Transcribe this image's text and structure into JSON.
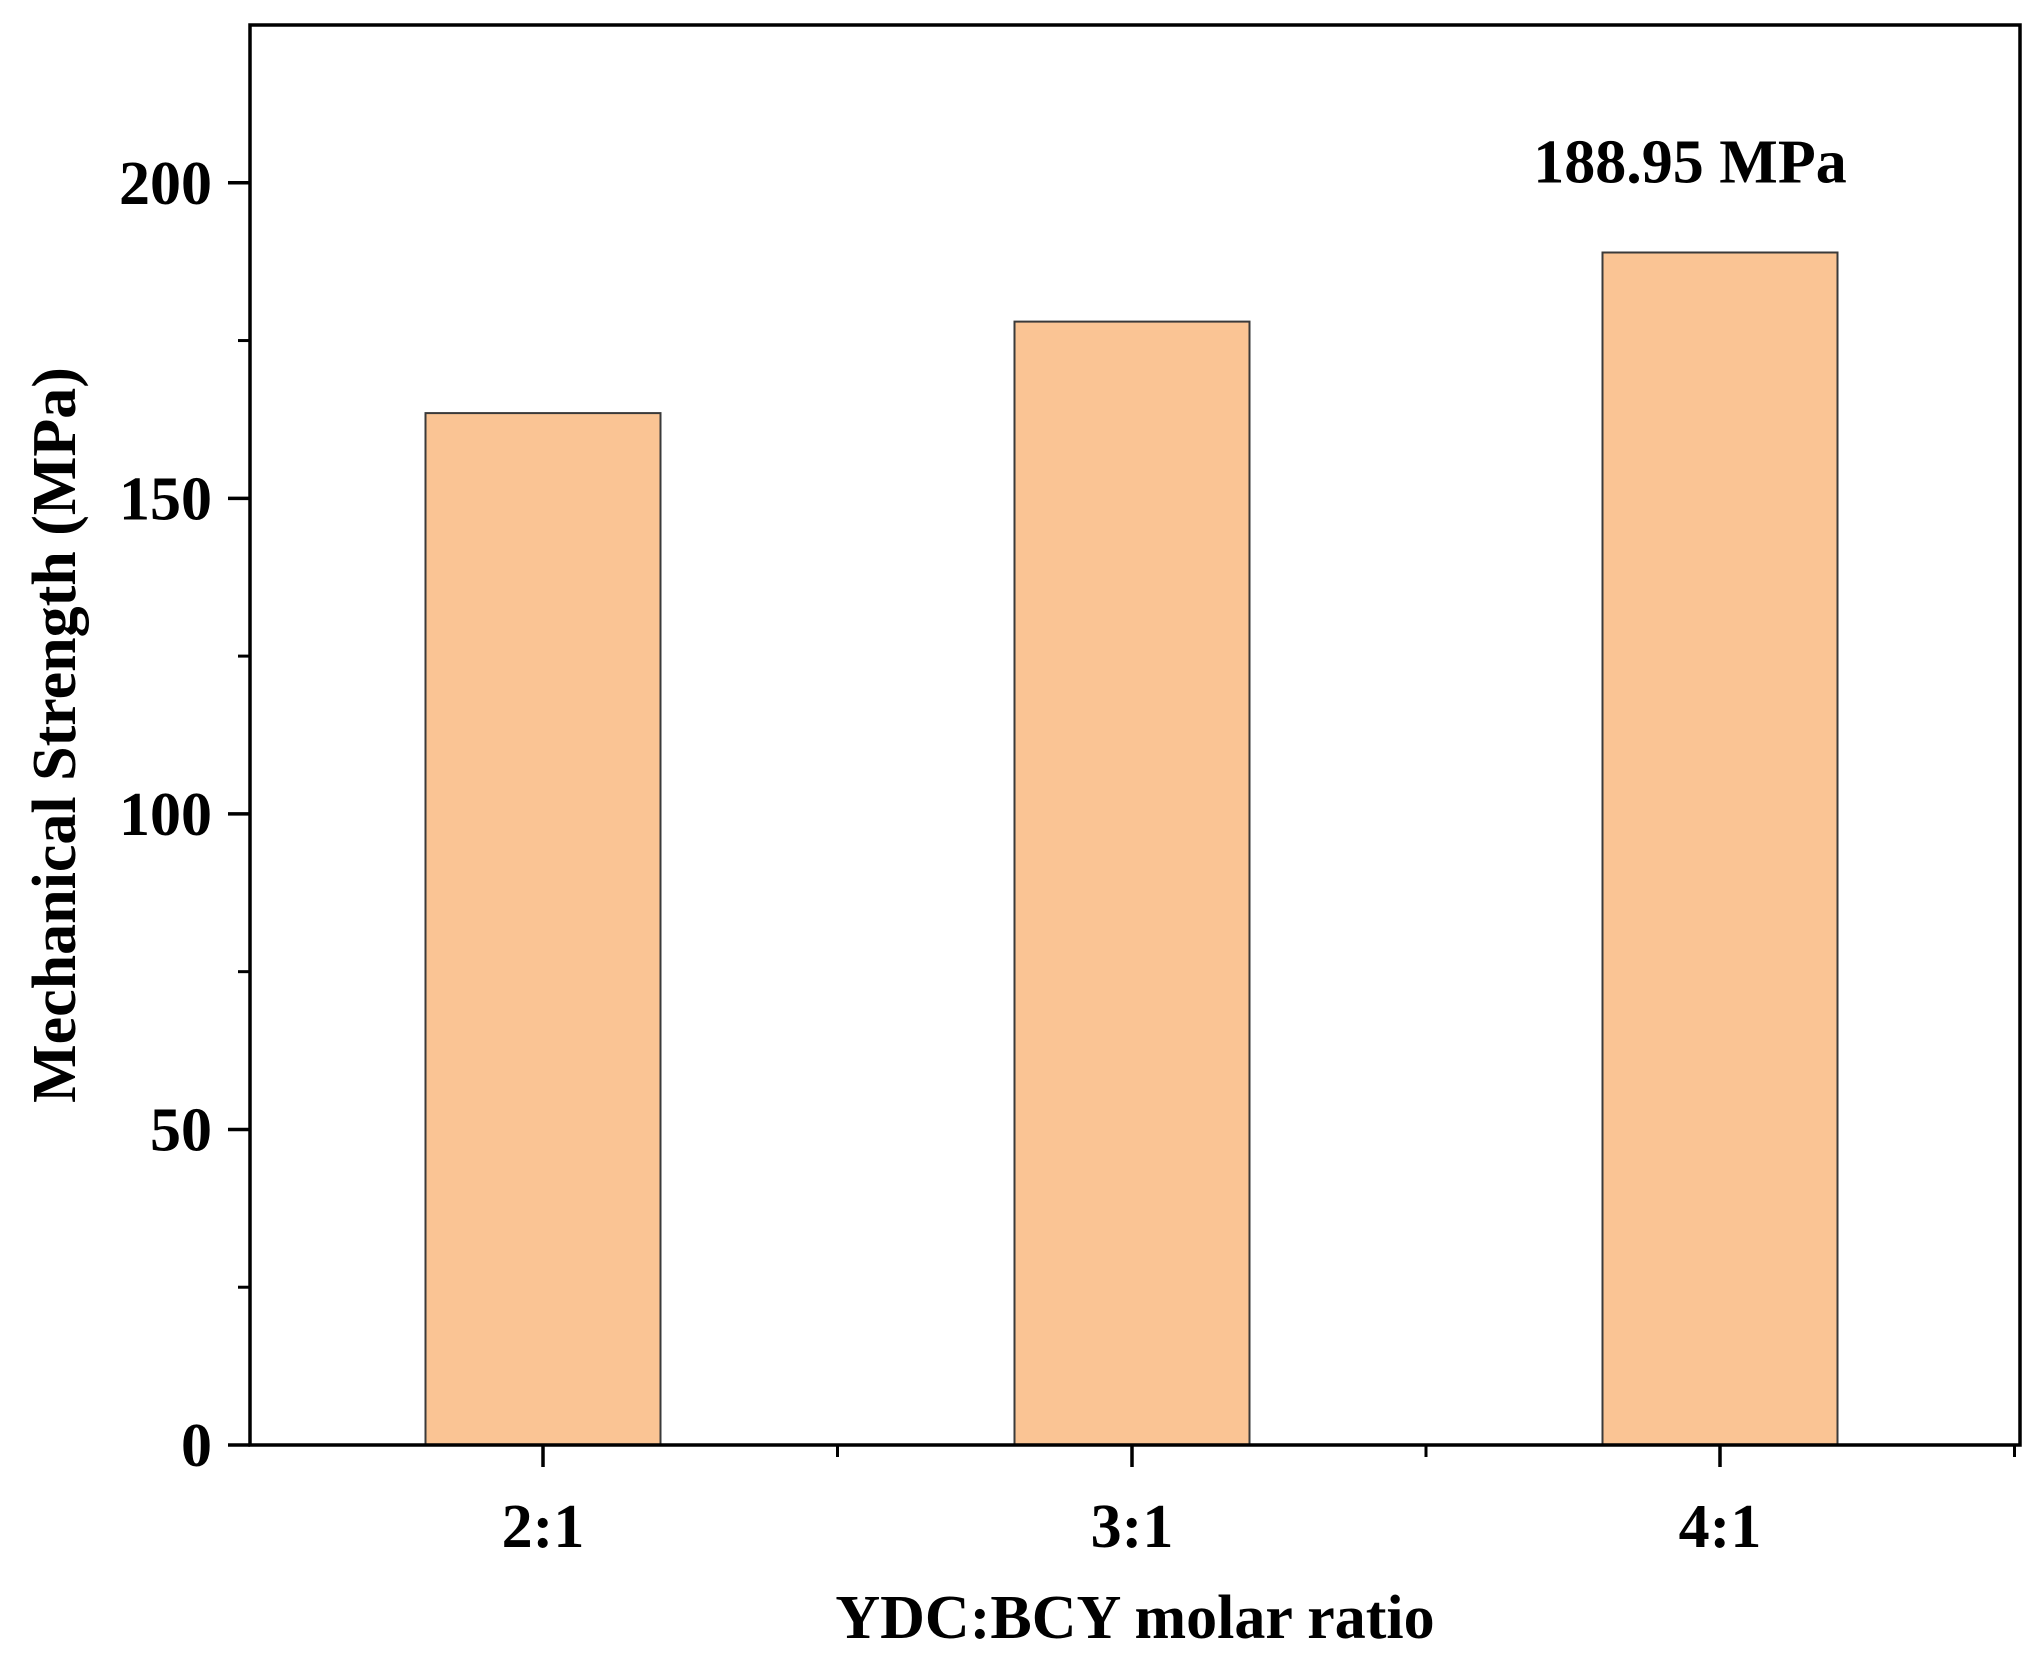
{
  "chart_data": {
    "type": "bar",
    "title": "",
    "categories": [
      "2:1",
      "3:1",
      "4:1"
    ],
    "values": [
      163.5,
      178,
      188.95
    ],
    "xlabel": "YDC:BCY molar ratio",
    "ylabel": "Mechanical Strength (MPa)",
    "ylim": [
      0,
      225
    ],
    "yticks": [
      0,
      50,
      100,
      150,
      200
    ],
    "yticks_minor": [
      25,
      75,
      125,
      175
    ],
    "grid": false,
    "bar_color": "#FAC494",
    "bar_edge_color": "#3a3a3a",
    "annotations": [
      {
        "category": "4:1",
        "text": "188.95 MPa"
      }
    ]
  }
}
